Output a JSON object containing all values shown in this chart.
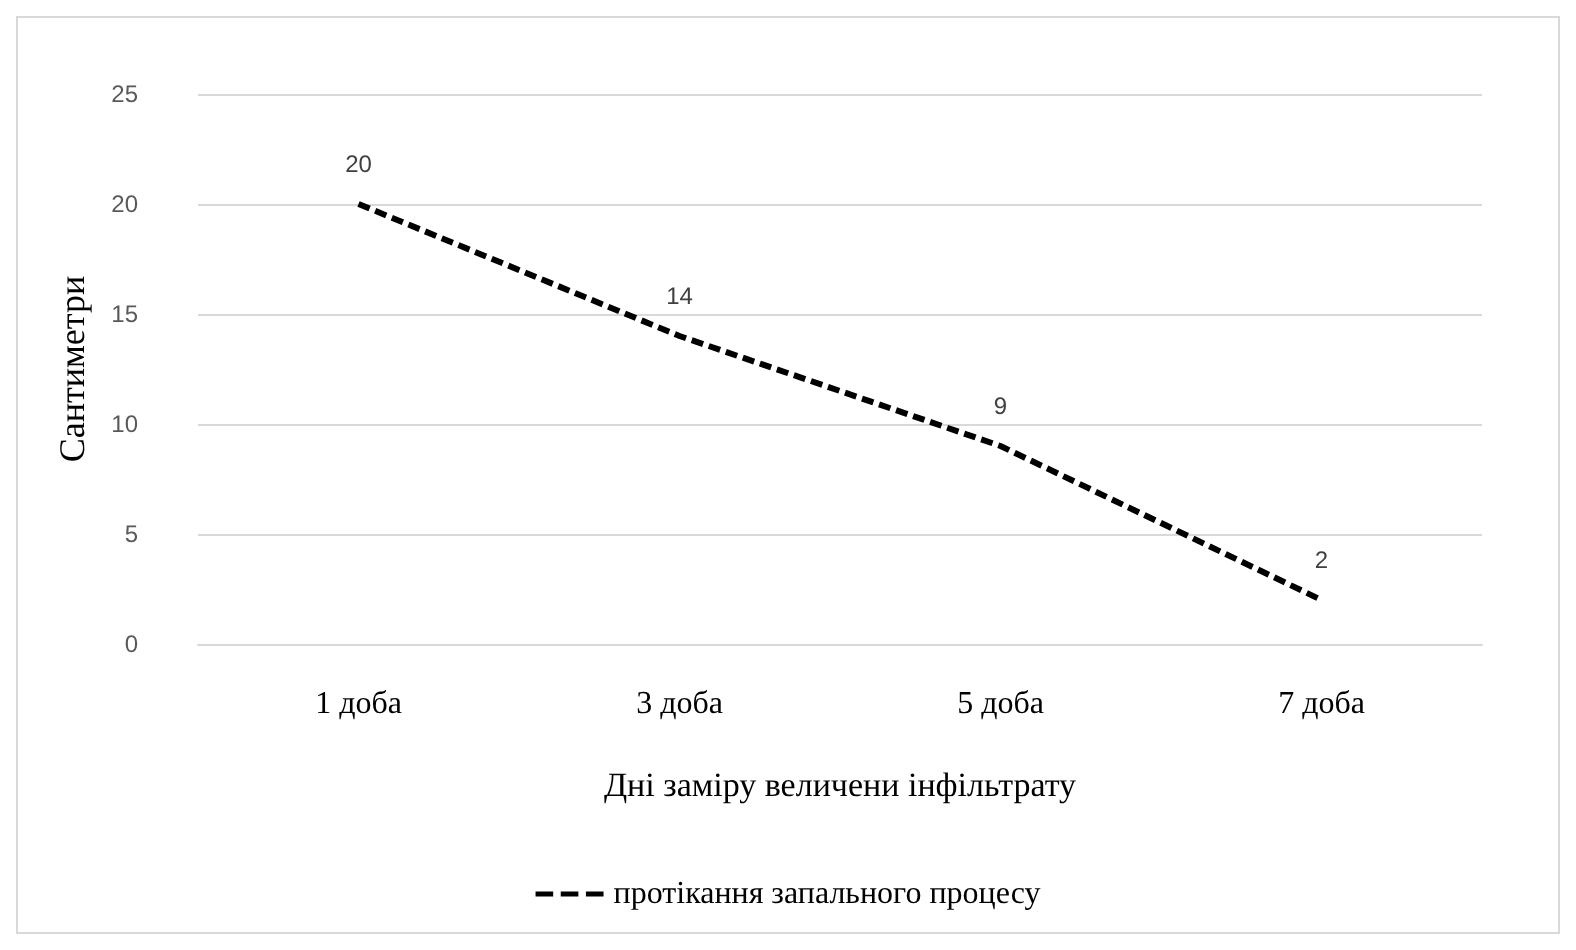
{
  "chart_data": {
    "type": "line",
    "categories": [
      "1 доба",
      "3 доба",
      "5 доба",
      "7 доба"
    ],
    "series": [
      {
        "name": "протікання запального процесу",
        "color": "#000000",
        "values": [
          20,
          14,
          9,
          2
        ]
      }
    ],
    "ylim": [
      0,
      25
    ],
    "yticks": [
      0,
      5,
      10,
      15,
      20,
      25
    ],
    "grid": "y",
    "ylabel": "Сантиметри",
    "xlabel": "Дні заміру величени інфільтрату",
    "legend": "bottom",
    "marker": "none",
    "line_style": "dashed",
    "data_labels": true
  }
}
